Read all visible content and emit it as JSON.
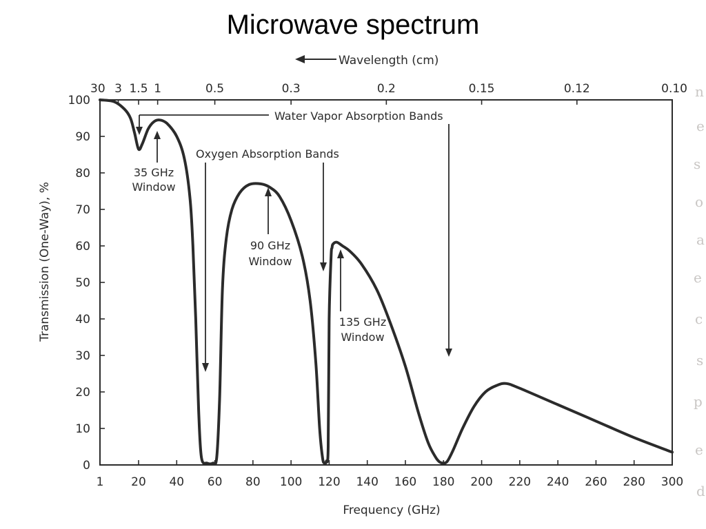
{
  "slide": {
    "title": "Microwave spectrum"
  },
  "chart_data": {
    "type": "line",
    "title": "",
    "xlabel": "Frequency (GHz)",
    "ylabel": "Transmission (One-Way), %",
    "top_axis_label": "Wavelength (cm)",
    "xlim": [
      1,
      300
    ],
    "ylim": [
      0,
      100
    ],
    "grid": false,
    "x_ticks": [
      1,
      20,
      40,
      60,
      80,
      100,
      120,
      140,
      160,
      180,
      200,
      220,
      240,
      260,
      280,
      300
    ],
    "y_ticks": [
      0,
      10,
      20,
      30,
      40,
      50,
      60,
      70,
      80,
      90,
      100
    ],
    "top_ticks": [
      {
        "label": "30",
        "freq": 1
      },
      {
        "label": "3",
        "freq": 10
      },
      {
        "label": "1.5",
        "freq": 20
      },
      {
        "label": "1",
        "freq": 30
      },
      {
        "label": "0.5",
        "freq": 60
      },
      {
        "label": "0.3",
        "freq": 100
      },
      {
        "label": "0.2",
        "freq": 150
      },
      {
        "label": "0.15",
        "freq": 200
      },
      {
        "label": "0.12",
        "freq": 250
      },
      {
        "label": "0.10",
        "freq": 300
      }
    ],
    "series": [
      {
        "name": "",
        "color": "#2b2b2b",
        "x": [
          1,
          8,
          13,
          16,
          18,
          20,
          22,
          25,
          28,
          31,
          35,
          40,
          44,
          47,
          48.5,
          50,
          51.5,
          53,
          56,
          59,
          61,
          62.5,
          64,
          66,
          69,
          73,
          78,
          84,
          89,
          94,
          100,
          106,
          110,
          113,
          115,
          116.5,
          117.5,
          118.5,
          119.5,
          120,
          121,
          121.5,
          122,
          124,
          127,
          131,
          137,
          145,
          152,
          160,
          167,
          172,
          176,
          178,
          180,
          182,
          185,
          190,
          196,
          202,
          208,
          213,
          220,
          240,
          260,
          280,
          300
        ],
        "y": [
          100,
          99.5,
          97.5,
          95,
          91,
          86.5,
          88,
          92,
          94,
          94.5,
          93.5,
          90,
          84,
          73,
          60,
          40,
          15,
          2,
          0.5,
          0.5,
          2,
          18,
          48,
          62,
          70,
          74.5,
          76.8,
          77,
          76,
          73.5,
          67,
          57,
          45,
          28,
          10,
          2,
          0.5,
          1,
          5,
          40,
          57,
          59.5,
          60.5,
          61,
          60,
          58.5,
          55,
          48,
          39,
          27,
          14,
          6,
          2,
          0.8,
          0.5,
          1,
          4,
          10,
          16,
          20,
          21.8,
          22.3,
          21,
          16.5,
          12,
          7.5,
          3.5
        ]
      }
    ],
    "annotations": [
      {
        "lines": [
          "Water Vapor Absorption Bands"
        ]
      },
      {
        "lines": [
          "Oxygen Absorption Bands"
        ]
      },
      {
        "lines": [
          "35 GHz",
          "Window"
        ]
      },
      {
        "lines": [
          "90 GHz",
          "Window"
        ]
      },
      {
        "lines": [
          "135 GHz",
          "Window"
        ]
      }
    ]
  }
}
